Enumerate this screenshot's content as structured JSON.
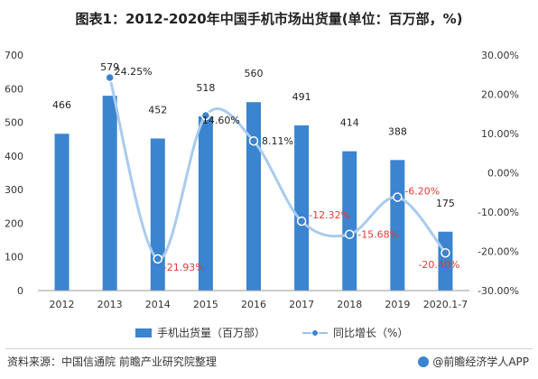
{
  "title": "图表1：2012-2020年中国手机市场出货量(单位：百万部，%)",
  "chart_data": {
    "type": "bar",
    "categories": [
      "2012",
      "2013",
      "2014",
      "2015",
      "2016",
      "2017",
      "2018",
      "2019",
      "2020.1-7"
    ],
    "series": [
      {
        "name": "手机出货量（百万部）",
        "type": "bar",
        "axis": "left",
        "values": [
          466,
          579,
          452,
          518,
          560,
          491,
          414,
          388,
          175
        ]
      },
      {
        "name": "同比增长（%）",
        "type": "line",
        "axis": "right",
        "values": [
          null,
          24.25,
          -21.93,
          14.6,
          8.11,
          -12.32,
          -15.68,
          -6.2,
          -20.4
        ],
        "labels": [
          "",
          "24.25%",
          "-21.93%",
          "14.60%",
          "8.11%",
          "-12.32%",
          "-15.68%",
          "-6.20%",
          "-20.40%"
        ]
      }
    ],
    "ylim_left": [
      0,
      700
    ],
    "yticks_left": [
      "0",
      "100",
      "200",
      "300",
      "400",
      "500",
      "600",
      "700"
    ],
    "ylim_right": [
      -30,
      30
    ],
    "yticks_right": [
      "-30.00%",
      "-20.00%",
      "-10.00%",
      "0.00%",
      "10.00%",
      "20.00%",
      "30.00%"
    ],
    "legend_position": "bottom",
    "colors": {
      "bar": "#3b84cf",
      "line": "#a9cbee",
      "marker": "#3b84cf",
      "negative_label": "#e03a3a",
      "positive_label": "#222222"
    }
  },
  "legend": {
    "bar": "手机出货量（百万部）",
    "line": "同比增长（%）"
  },
  "footer": {
    "source": "资料来源：中国信通院 前瞻产业研究院整理",
    "brand": "@前瞻经济学人APP"
  }
}
